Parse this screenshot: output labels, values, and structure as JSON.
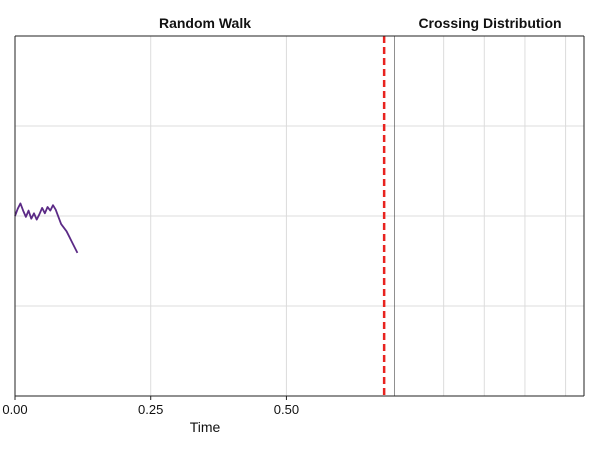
{
  "chart_data": [
    {
      "type": "line",
      "title": "Random Walk",
      "xlabel": "Time",
      "ylabel": "",
      "xlim": [
        0,
        0.7
      ],
      "ylim": [
        -2,
        2
      ],
      "x_ticks": [
        0,
        0.25,
        0.5
      ],
      "x_tick_labels": [
        "0.00",
        "0.25",
        "0.50"
      ],
      "y_gridlines": [
        -1,
        0,
        1
      ],
      "grid": true,
      "colors": {
        "walk": "#5b2a86",
        "boundary": "#e8231f"
      },
      "threshold_time": 0.68,
      "series": [
        {
          "values": [
            [
              0.0,
              0.0
            ],
            [
              0.005,
              0.08
            ],
            [
              0.01,
              0.14
            ],
            [
              0.015,
              0.06
            ],
            [
              0.02,
              -0.01
            ],
            [
              0.025,
              0.06
            ],
            [
              0.03,
              -0.03
            ],
            [
              0.035,
              0.03
            ],
            [
              0.04,
              -0.04
            ],
            [
              0.045,
              0.02
            ],
            [
              0.05,
              0.09
            ],
            [
              0.055,
              0.03
            ],
            [
              0.06,
              0.1
            ],
            [
              0.065,
              0.06
            ],
            [
              0.07,
              0.12
            ],
            [
              0.075,
              0.07
            ],
            [
              0.08,
              -0.01
            ],
            [
              0.085,
              -0.09
            ],
            [
              0.09,
              -0.13
            ],
            [
              0.095,
              -0.17
            ],
            [
              0.1,
              -0.23
            ],
            [
              0.105,
              -0.29
            ],
            [
              0.11,
              -0.35
            ],
            [
              0.115,
              -0.41
            ]
          ]
        }
      ]
    },
    {
      "type": "line",
      "title": "Crossing Distribution",
      "grid": true,
      "x_gridlines": 4,
      "y_gridlines": [
        -1,
        0,
        1
      ]
    }
  ]
}
